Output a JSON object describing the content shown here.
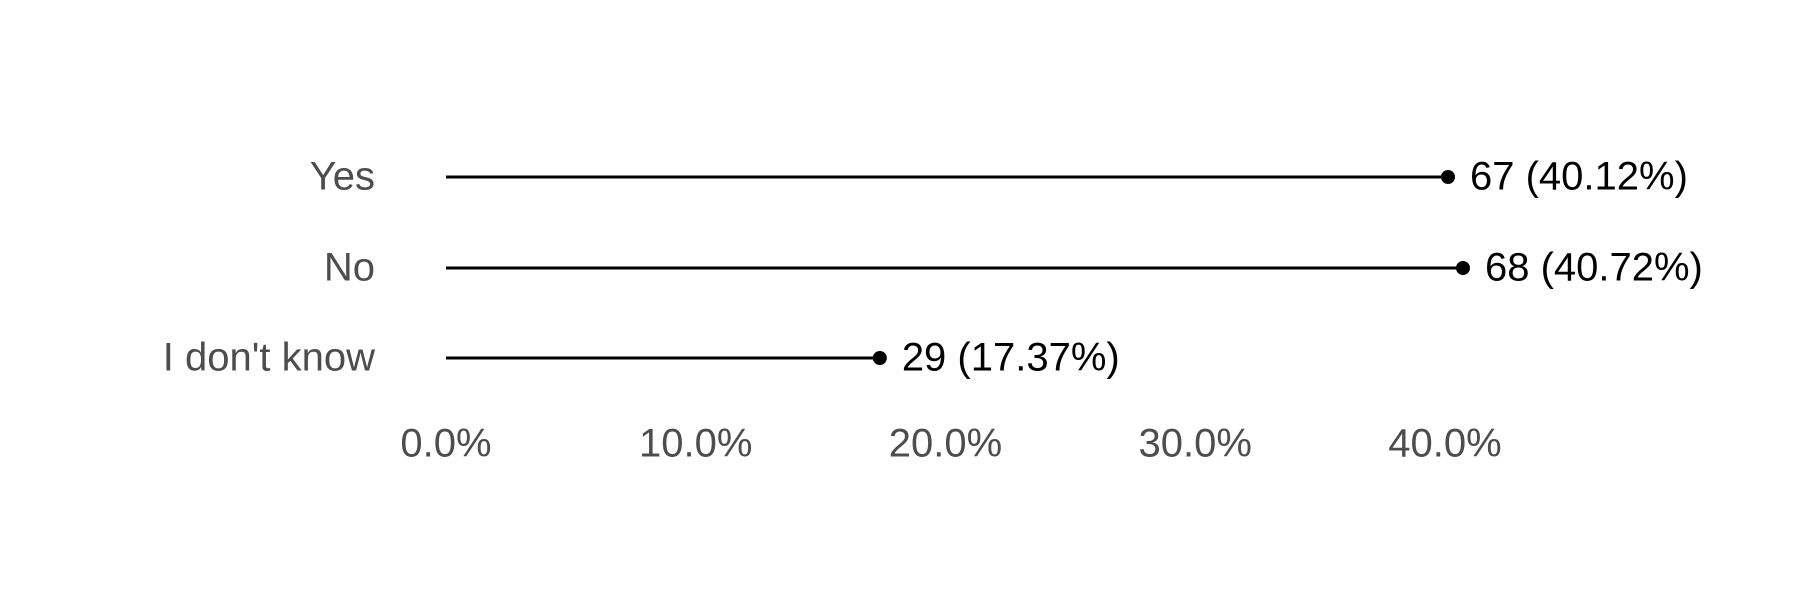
{
  "chart_data": {
    "type": "lollipop",
    "categories": [
      "Yes",
      "No",
      "I don't know"
    ],
    "values": [
      40.12,
      40.72,
      17.37
    ],
    "value_labels": [
      "67 (40.12%)",
      "68 (40.72%)",
      "29 (17.37%)"
    ],
    "color": "#000000",
    "xlim": [
      0,
      40
    ],
    "xticks": [
      {
        "value": 0,
        "label": "0.0%"
      },
      {
        "value": 10,
        "label": "10.0%"
      },
      {
        "value": 20,
        "label": "20.0%"
      },
      {
        "value": 30,
        "label": "30.0%"
      },
      {
        "value": 40,
        "label": "40.0%"
      }
    ],
    "grid": false
  }
}
